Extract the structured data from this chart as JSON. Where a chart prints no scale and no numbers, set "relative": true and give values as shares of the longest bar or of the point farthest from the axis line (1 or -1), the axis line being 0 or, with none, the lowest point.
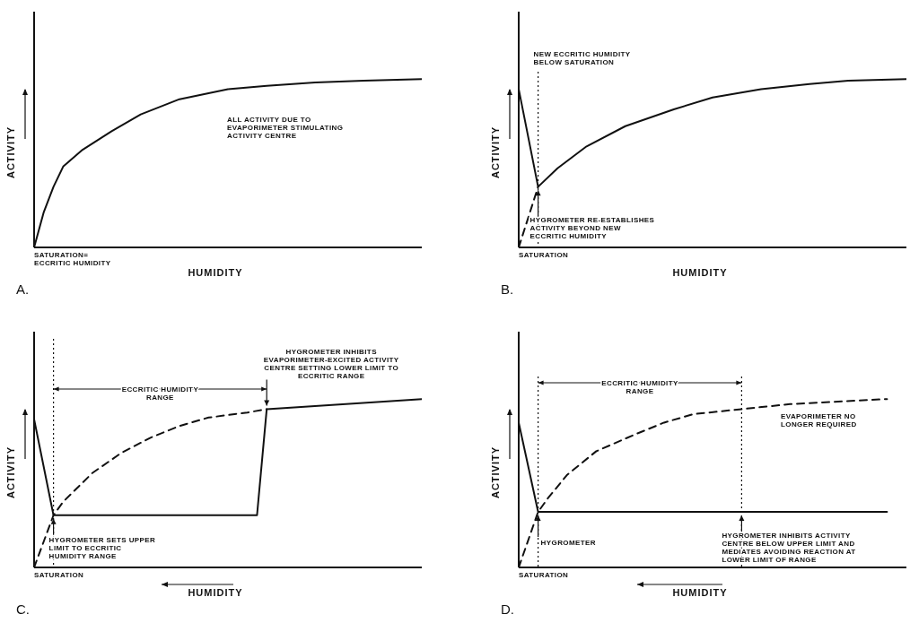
{
  "chart_data": [
    {
      "type": "line",
      "title": "A.",
      "xlabel": "HUMIDITY",
      "ylabel": "ACTIVITY",
      "relative": true,
      "categories": [
        null,
        null,
        null,
        null,
        null,
        null,
        null,
        null,
        null,
        null,
        null,
        null,
        null,
        null,
        null,
        null,
        null,
        null,
        null,
        null,
        null,
        null,
        null,
        null,
        null,
        null,
        null,
        null,
        null,
        null,
        null,
        null,
        null,
        null,
        null,
        null,
        null,
        null,
        null,
        null,
        null
      ],
      "annotations": [
        "ALL ACTIVITY DUE TO EVAPORIMETER STIMULATING ACTIVITY CENTRE",
        "SATURATION= ECCRITIC HUMIDITY"
      ],
      "series": [
        {
          "color": "#111111",
          "line_style": "solid",
          "values": [
            0,
            0.21,
            0.36,
            0.48,
            null,
            0.58,
            null,
            null,
            0.69,
            null,
            null,
            0.79,
            null,
            null,
            null,
            0.88,
            null,
            null,
            null,
            null,
            0.94,
            null,
            null,
            null,
            0.96,
            null,
            null,
            null,
            null,
            0.98,
            null,
            null,
            null,
            null,
            0.99,
            null,
            null,
            null,
            null,
            null,
            1
          ]
        }
      ]
    },
    {
      "type": "line",
      "title": "B.",
      "xlabel": "HUMIDITY",
      "ylabel": "ACTIVITY",
      "relative": true,
      "categories": [
        null,
        null,
        null,
        null,
        null,
        null,
        null,
        null,
        null,
        null,
        null,
        null,
        null,
        null,
        null,
        null,
        null,
        null,
        null,
        null,
        null,
        null,
        null,
        null,
        null,
        null,
        null,
        null,
        null,
        null,
        null,
        null,
        null,
        null,
        null,
        null,
        null,
        null,
        null,
        null,
        null
      ],
      "annotations": [
        "NEW ECCRITIC HUMIDITY BELOW SATURATION",
        "HYGROMETER RE-ESTABLISHES ACTIVITY BEYOND NEW ECCRITIC HUMIDITY",
        "SATURATION"
      ],
      "series": [
        {
          "color": "#111111",
          "line_style": "solid",
          "values": [
            0.94,
            null,
            0.36,
            null,
            0.47,
            null,
            null,
            0.6,
            null,
            null,
            null,
            0.72,
            null,
            null,
            null,
            null,
            0.82,
            null,
            null,
            null,
            0.89,
            null,
            null,
            null,
            null,
            0.94,
            null,
            null,
            null,
            null,
            0.97,
            null,
            null,
            null,
            0.99,
            null,
            null,
            null,
            null,
            null,
            1
          ]
        },
        {
          "color": "#111111",
          "line_style": "dashed",
          "values": [
            0,
            null,
            0.36,
            null,
            null,
            null,
            null,
            null,
            null,
            null,
            null,
            null,
            null,
            null,
            null,
            null,
            null,
            null,
            null,
            null,
            null,
            null,
            null,
            null,
            null,
            null,
            null,
            null,
            null,
            null,
            null,
            null,
            null,
            null,
            null,
            null,
            null,
            null,
            null,
            null,
            null
          ]
        }
      ]
    },
    {
      "type": "line",
      "title": "C.",
      "xlabel": "HUMIDITY",
      "ylabel": "ACTIVITY",
      "relative": true,
      "categories": [
        null,
        null,
        null,
        null,
        null,
        null,
        null,
        null,
        null,
        null,
        null,
        null,
        null,
        null,
        null,
        null,
        null,
        null,
        null,
        null,
        null,
        null,
        null,
        null,
        null,
        null,
        null,
        null,
        null,
        null,
        null,
        null,
        null,
        null,
        null,
        null,
        null,
        null,
        null,
        null,
        null
      ],
      "annotations": [
        "ECCRITIC HUMIDITY RANGE",
        "HYGROMETER INHIBITS EVAPORIMETER-EXCITED ACTIVITY CENTRE SETTING LOWER LIMIT TO ECCRITIC RANGE",
        "HYGROMETER SETS UPPER LIMIT TO ECCRITIC HUMIDITY RANGE",
        "SATURATION"
      ],
      "series": [
        {
          "color": "#111111",
          "line_style": "solid",
          "values": [
            0.88,
            null,
            0.31,
            null,
            null,
            null,
            null,
            null,
            null,
            null,
            null,
            null,
            null,
            null,
            null,
            null,
            null,
            null,
            null,
            null,
            null,
            null,
            null,
            0.31,
            0.94,
            null,
            null,
            null,
            null,
            null,
            null,
            null,
            null,
            null,
            null,
            null,
            null,
            null,
            null,
            null,
            1
          ]
        },
        {
          "color": "#111111",
          "line_style": "dashed",
          "values": [
            0,
            null,
            0.31,
            0.39,
            null,
            null,
            0.56,
            null,
            null,
            0.68,
            null,
            null,
            0.77,
            null,
            null,
            0.84,
            null,
            null,
            0.89,
            null,
            null,
            null,
            0.92,
            null,
            0.94,
            null,
            null,
            null,
            null,
            null,
            null,
            null,
            null,
            null,
            null,
            null,
            null,
            null,
            null,
            null,
            null
          ]
        }
      ]
    },
    {
      "type": "line",
      "title": "D.",
      "xlabel": "HUMIDITY",
      "ylabel": "ACTIVITY",
      "relative": true,
      "categories": [
        null,
        null,
        null,
        null,
        null,
        null,
        null,
        null,
        null,
        null,
        null,
        null,
        null,
        null,
        null,
        null,
        null,
        null,
        null,
        null,
        null,
        null,
        null,
        null,
        null,
        null,
        null,
        null,
        null,
        null,
        null,
        null,
        null,
        null,
        null,
        null,
        null,
        null,
        null,
        null,
        null
      ],
      "annotations": [
        "ECCRITIC HUMIDITY RANGE",
        "EVAPORIMETER NO LONGER REQUIRED",
        "HYGROMETER",
        "HYGROMETER INHIBITS ACTIVITY CENTRE BELOW UPPER LIMIT AND MEDIATES AVOIDING REACTION AT LOWER LIMIT OF RANGE",
        "SATURATION"
      ],
      "series": [
        {
          "color": "#111111",
          "line_style": "solid",
          "values": [
            0.86,
            null,
            0.33,
            null,
            null,
            null,
            null,
            null,
            null,
            null,
            null,
            null,
            null,
            null,
            null,
            null,
            null,
            null,
            null,
            null,
            null,
            null,
            null,
            null,
            null,
            null,
            null,
            null,
            null,
            null,
            null,
            null,
            null,
            null,
            null,
            null,
            null,
            null,
            0.33,
            null,
            null
          ]
        },
        {
          "color": "#111111",
          "line_style": "dashed",
          "values": [
            0,
            null,
            0.33,
            0.41,
            null,
            0.55,
            null,
            null,
            0.69,
            null,
            null,
            null,
            0.79,
            null,
            null,
            0.86,
            null,
            null,
            0.91,
            null,
            null,
            null,
            null,
            0.94,
            null,
            null,
            null,
            null,
            0.97,
            null,
            null,
            null,
            null,
            null,
            null,
            null,
            null,
            null,
            1,
            null,
            null
          ]
        }
      ]
    }
  ]
}
